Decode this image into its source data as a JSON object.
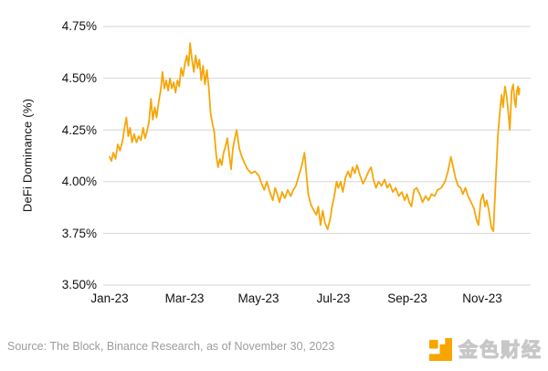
{
  "page": {
    "background": "#FFFFFF"
  },
  "chart_data": {
    "type": "line",
    "title": "",
    "xlabel": "",
    "ylabel": "DeFi Dominance (%)",
    "x_ticks": [
      "Jan-23",
      "Mar-23",
      "May-23",
      "Jul-23",
      "Sep-23",
      "Nov-23"
    ],
    "y_ticks": [
      "4.75%",
      "4.50%",
      "4.25%",
      "4.00%",
      "3.75%",
      "3.50%"
    ],
    "ylim": [
      3.5,
      4.75
    ],
    "x_range": [
      "Jan 1, 2023",
      "Nov 30, 2023"
    ],
    "grid": true,
    "legend_position": "none",
    "line_color": "#F5A70A",
    "grid_color": "#D6D6D6",
    "series": [
      {
        "name": "DeFi Dominance (%)",
        "x_unit": "months since Jan 1, 2023",
        "points": [
          [
            0,
            4.12
          ],
          [
            0.05,
            4.1
          ],
          [
            0.1,
            4.14
          ],
          [
            0.16,
            4.11
          ],
          [
            0.22,
            4.18
          ],
          [
            0.28,
            4.15
          ],
          [
            0.35,
            4.2
          ],
          [
            0.4,
            4.26
          ],
          [
            0.45,
            4.31
          ],
          [
            0.5,
            4.22
          ],
          [
            0.55,
            4.26
          ],
          [
            0.6,
            4.19
          ],
          [
            0.66,
            4.23
          ],
          [
            0.72,
            4.19
          ],
          [
            0.78,
            4.22
          ],
          [
            0.84,
            4.2
          ],
          [
            0.9,
            4.26
          ],
          [
            0.95,
            4.21
          ],
          [
            1.0,
            4.24
          ],
          [
            1.06,
            4.29
          ],
          [
            1.11,
            4.4
          ],
          [
            1.16,
            4.3
          ],
          [
            1.21,
            4.36
          ],
          [
            1.26,
            4.31
          ],
          [
            1.32,
            4.39
          ],
          [
            1.37,
            4.44
          ],
          [
            1.42,
            4.53
          ],
          [
            1.47,
            4.45
          ],
          [
            1.52,
            4.49
          ],
          [
            1.57,
            4.44
          ],
          [
            1.62,
            4.5
          ],
          [
            1.67,
            4.45
          ],
          [
            1.72,
            4.48
          ],
          [
            1.77,
            4.43
          ],
          [
            1.82,
            4.49
          ],
          [
            1.87,
            4.46
          ],
          [
            1.92,
            4.55
          ],
          [
            1.97,
            4.51
          ],
          [
            2.02,
            4.57
          ],
          [
            2.07,
            4.61
          ],
          [
            2.12,
            4.56
          ],
          [
            2.16,
            4.67
          ],
          [
            2.21,
            4.59
          ],
          [
            2.26,
            4.53
          ],
          [
            2.31,
            4.61
          ],
          [
            2.36,
            4.55
          ],
          [
            2.41,
            4.59
          ],
          [
            2.46,
            4.49
          ],
          [
            2.51,
            4.56
          ],
          [
            2.56,
            4.47
          ],
          [
            2.61,
            4.54
          ],
          [
            2.66,
            4.46
          ],
          [
            2.71,
            4.33
          ],
          [
            2.76,
            4.28
          ],
          [
            2.81,
            4.24
          ],
          [
            2.86,
            4.13
          ],
          [
            2.91,
            4.07
          ],
          [
            2.96,
            4.11
          ],
          [
            3.01,
            4.08
          ],
          [
            3.06,
            4.14
          ],
          [
            3.11,
            4.17
          ],
          [
            3.16,
            4.21
          ],
          [
            3.21,
            4.13
          ],
          [
            3.26,
            4.06
          ],
          [
            3.31,
            4.16
          ],
          [
            3.36,
            4.21
          ],
          [
            3.41,
            4.25
          ],
          [
            3.48,
            4.16
          ],
          [
            3.55,
            4.12
          ],
          [
            3.62,
            4.09
          ],
          [
            3.7,
            4.06
          ],
          [
            3.8,
            4.04
          ],
          [
            3.9,
            4.05
          ],
          [
            4.0,
            4.03
          ],
          [
            4.08,
            3.99
          ],
          [
            4.15,
            3.96
          ],
          [
            4.22,
            4.0
          ],
          [
            4.3,
            3.95
          ],
          [
            4.38,
            3.91
          ],
          [
            4.44,
            3.97
          ],
          [
            4.5,
            3.94
          ],
          [
            4.56,
            3.9
          ],
          [
            4.63,
            3.95
          ],
          [
            4.7,
            3.92
          ],
          [
            4.78,
            3.96
          ],
          [
            4.86,
            3.93
          ],
          [
            4.93,
            3.96
          ],
          [
            5.0,
            3.98
          ],
          [
            5.08,
            4.03
          ],
          [
            5.16,
            4.08
          ],
          [
            5.23,
            4.14
          ],
          [
            5.28,
            4.04
          ],
          [
            5.33,
            3.94
          ],
          [
            5.4,
            3.89
          ],
          [
            5.48,
            3.86
          ],
          [
            5.55,
            3.84
          ],
          [
            5.6,
            3.88
          ],
          [
            5.66,
            3.79
          ],
          [
            5.72,
            3.86
          ],
          [
            5.78,
            3.8
          ],
          [
            5.85,
            3.77
          ],
          [
            5.92,
            3.82
          ],
          [
            5.97,
            3.88
          ],
          [
            6.03,
            3.93
          ],
          [
            6.09,
            4.0
          ],
          [
            6.14,
            3.97
          ],
          [
            6.2,
            4.0
          ],
          [
            6.26,
            3.95
          ],
          [
            6.33,
            4.02
          ],
          [
            6.4,
            4.05
          ],
          [
            6.46,
            4.02
          ],
          [
            6.52,
            4.07
          ],
          [
            6.58,
            4.04
          ],
          [
            6.64,
            4.08
          ],
          [
            6.72,
            4.03
          ],
          [
            6.8,
            3.99
          ],
          [
            6.88,
            4.02
          ],
          [
            6.95,
            4.05
          ],
          [
            7.02,
            4.07
          ],
          [
            7.08,
            4.01
          ],
          [
            7.15,
            3.97
          ],
          [
            7.22,
            4.0
          ],
          [
            7.3,
            3.98
          ],
          [
            7.38,
            4.01
          ],
          [
            7.45,
            3.97
          ],
          [
            7.52,
            3.99
          ],
          [
            7.6,
            3.95
          ],
          [
            7.68,
            3.97
          ],
          [
            7.76,
            3.93
          ],
          [
            7.84,
            3.95
          ],
          [
            7.92,
            3.91
          ],
          [
            7.98,
            3.94
          ],
          [
            8.04,
            3.9
          ],
          [
            8.1,
            3.88
          ],
          [
            8.17,
            3.96
          ],
          [
            8.24,
            3.97
          ],
          [
            8.32,
            3.94
          ],
          [
            8.4,
            3.9
          ],
          [
            8.48,
            3.93
          ],
          [
            8.56,
            3.91
          ],
          [
            8.64,
            3.94
          ],
          [
            8.72,
            3.93
          ],
          [
            8.8,
            3.96
          ],
          [
            8.9,
            3.97
          ],
          [
            9.0,
            4.0
          ],
          [
            9.08,
            4.05
          ],
          [
            9.16,
            4.12
          ],
          [
            9.22,
            4.07
          ],
          [
            9.28,
            4.02
          ],
          [
            9.35,
            3.98
          ],
          [
            9.42,
            3.97
          ],
          [
            9.48,
            3.94
          ],
          [
            9.55,
            3.97
          ],
          [
            9.62,
            3.93
          ],
          [
            9.7,
            3.9
          ],
          [
            9.78,
            3.87
          ],
          [
            9.84,
            3.82
          ],
          [
            9.9,
            3.79
          ],
          [
            9.96,
            3.91
          ],
          [
            10.02,
            3.94
          ],
          [
            10.07,
            3.88
          ],
          [
            10.12,
            3.91
          ],
          [
            10.18,
            3.86
          ],
          [
            10.24,
            3.78
          ],
          [
            10.3,
            3.76
          ],
          [
            10.36,
            4.0
          ],
          [
            10.42,
            4.22
          ],
          [
            10.48,
            4.35
          ],
          [
            10.52,
            4.42
          ],
          [
            10.56,
            4.36
          ],
          [
            10.61,
            4.46
          ],
          [
            10.66,
            4.41
          ],
          [
            10.7,
            4.33
          ],
          [
            10.74,
            4.25
          ],
          [
            10.79,
            4.44
          ],
          [
            10.83,
            4.47
          ],
          [
            10.87,
            4.39
          ],
          [
            10.9,
            4.36
          ],
          [
            10.93,
            4.44
          ],
          [
            10.96,
            4.46
          ],
          [
            10.98,
            4.42
          ],
          [
            11.0,
            4.45
          ]
        ]
      }
    ]
  },
  "source": {
    "text": "Source: The Block, Binance Research, as of November 30, 2023"
  },
  "branding": {
    "name": "金色财经",
    "icon": "jinse-logo-icon",
    "icon_color": "#F7A600",
    "text_color": "#E9E9E9"
  }
}
